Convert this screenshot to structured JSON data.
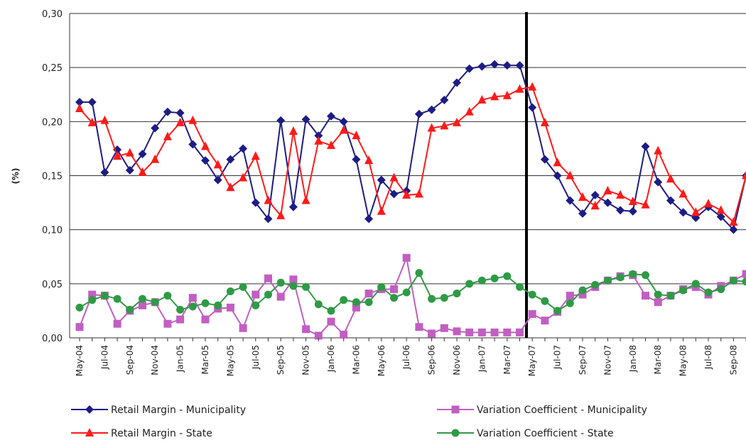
{
  "chart_data": {
    "type": "line",
    "ylabel": "(%)",
    "ylim": [
      0,
      0.3
    ],
    "yticks": [
      {
        "value": 0,
        "label": "0,00"
      },
      {
        "value": 0.05,
        "label": "0,05"
      },
      {
        "value": 0.1,
        "label": "0,10"
      },
      {
        "value": 0.15,
        "label": "0,15"
      },
      {
        "value": 0.2,
        "label": "0,20"
      },
      {
        "value": 0.25,
        "label": "0,25"
      },
      {
        "value": 0.3,
        "label": "0,30"
      }
    ],
    "grid": true,
    "legend": "bottom",
    "categories": [
      "May-04",
      null,
      "Jul-04",
      null,
      "Sep-04",
      null,
      "Nov-04",
      null,
      "Jan-05",
      null,
      "Mar-05",
      null,
      "May-05",
      null,
      "Jul-05",
      null,
      "Sep-05",
      null,
      "Nov-05",
      null,
      "Jan-06",
      null,
      "Mar-06",
      null,
      "May-06",
      null,
      "Jul-06",
      null,
      "Sep-06",
      null,
      "Nov-06",
      null,
      "Jan-07",
      null,
      "Mar-07",
      null,
      "May-07",
      null,
      "Jul-07",
      null,
      "Sep-07",
      null,
      "Nov-07",
      null,
      "Jan-08",
      null,
      "Mar-08",
      null,
      "May-08",
      null,
      "Jul-08",
      null,
      "Sep-08",
      null
    ],
    "series": [
      {
        "name": "Retail Margin - Municipality",
        "color": "#1c1c84",
        "marker": "diamond",
        "values": [
          0.218,
          0.218,
          0.153,
          0.174,
          0.155,
          0.17,
          0.194,
          0.209,
          0.208,
          0.179,
          0.164,
          0.146,
          0.165,
          0.175,
          0.125,
          0.11,
          0.201,
          0.121,
          0.202,
          0.187,
          0.205,
          0.2,
          0.165,
          0.11,
          0.146,
          0.133,
          0.136,
          0.207,
          0.211,
          0.22,
          0.236,
          0.249,
          0.251,
          0.253,
          0.252,
          0.252,
          0.213,
          0.165,
          0.15,
          0.127,
          0.115,
          0.132,
          0.125,
          0.118,
          0.117,
          0.177,
          0.144,
          0.127,
          0.116,
          0.111,
          0.121,
          0.112,
          0.1,
          0.15
        ]
      },
      {
        "name": "Retail Margin - State",
        "color": "#ff1a1a",
        "marker": "triangle",
        "values": [
          0.212,
          0.199,
          0.201,
          0.168,
          0.171,
          0.153,
          0.165,
          0.186,
          0.199,
          0.201,
          0.177,
          0.16,
          0.139,
          0.148,
          0.168,
          0.127,
          0.113,
          0.191,
          0.127,
          0.182,
          0.178,
          0.192,
          0.187,
          0.164,
          0.117,
          0.148,
          0.132,
          0.133,
          0.194,
          0.196,
          0.199,
          0.209,
          0.22,
          0.223,
          0.224,
          0.23,
          0.232,
          0.199,
          0.162,
          0.15,
          0.13,
          0.122,
          0.136,
          0.132,
          0.126,
          0.123,
          0.173,
          0.147,
          0.133,
          0.116,
          0.124,
          0.118,
          0.107,
          0.15
        ]
      },
      {
        "name": "Variation Coefficient - Municipality",
        "color": "#c25ec2",
        "marker": "square",
        "values": [
          0.01,
          0.04,
          0.039,
          0.013,
          0.025,
          0.03,
          0.033,
          0.013,
          0.017,
          0.037,
          0.017,
          0.027,
          0.028,
          0.009,
          0.04,
          0.055,
          0.038,
          0.054,
          0.008,
          0.002,
          0.015,
          0.003,
          0.028,
          0.041,
          0.045,
          0.045,
          0.074,
          0.01,
          0.004,
          0.009,
          0.006,
          0.005,
          0.005,
          0.005,
          0.005,
          0.005,
          0.022,
          0.016,
          0.024,
          0.039,
          0.04,
          0.047,
          0.053,
          0.057,
          0.058,
          0.039,
          0.033,
          0.039,
          0.045,
          0.047,
          0.04,
          0.048,
          0.053,
          0.059
        ]
      },
      {
        "name": "Variation Coefficient - State",
        "color": "#2f9a45",
        "marker": "circle",
        "values": [
          0.028,
          0.035,
          0.039,
          0.036,
          0.026,
          0.036,
          0.033,
          0.039,
          0.026,
          0.029,
          0.032,
          0.03,
          0.043,
          0.047,
          0.03,
          0.04,
          0.051,
          0.048,
          0.047,
          0.031,
          0.025,
          0.035,
          0.033,
          0.033,
          0.047,
          0.037,
          0.042,
          0.06,
          0.036,
          0.037,
          0.041,
          0.05,
          0.053,
          0.055,
          0.057,
          0.047,
          0.04,
          0.034,
          0.025,
          0.032,
          0.044,
          0.049,
          0.053,
          0.056,
          0.059,
          0.058,
          0.04,
          0.039,
          0.044,
          0.05,
          0.042,
          0.045,
          0.053,
          0.052
        ]
      }
    ]
  }
}
